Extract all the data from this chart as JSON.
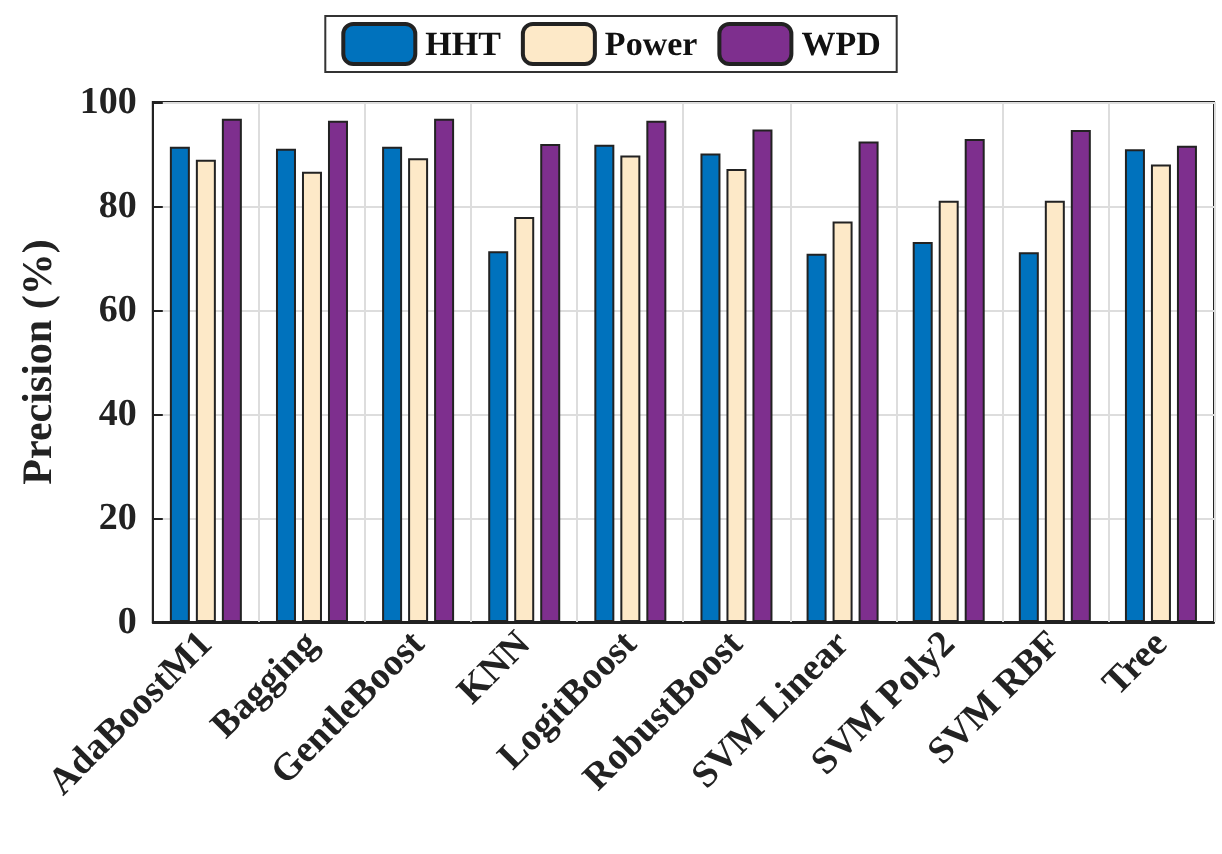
{
  "chart_data": {
    "type": "bar",
    "ylabel": "Precision (%)",
    "categories": [
      "AdaBoostM1",
      "Bagging",
      "GentleBoost",
      "KNN",
      "LogitBoost",
      "RobustBoost",
      "SVM Linear",
      "SVM Poly2",
      "SVM RBF",
      "Tree"
    ],
    "series": [
      {
        "name": "HHT",
        "color": "#0072bd",
        "values": [
          91.4,
          91.0,
          91.4,
          71.3,
          91.8,
          90.1,
          70.8,
          73.1,
          71.1,
          90.9
        ]
      },
      {
        "name": "Power",
        "color": "#fde9c8",
        "values": [
          88.9,
          86.6,
          89.2,
          77.9,
          89.7,
          87.1,
          77.0,
          81.0,
          81.0,
          88.0
        ]
      },
      {
        "name": "WPD",
        "color": "#7e2f8e",
        "values": [
          96.8,
          96.4,
          96.8,
          91.9,
          96.4,
          94.7,
          92.4,
          92.9,
          94.6,
          91.6
        ]
      }
    ],
    "ylim": [
      0,
      100
    ],
    "yticks": [
      0,
      20,
      40,
      60,
      80,
      100
    ],
    "grid": true,
    "legend": "top"
  }
}
